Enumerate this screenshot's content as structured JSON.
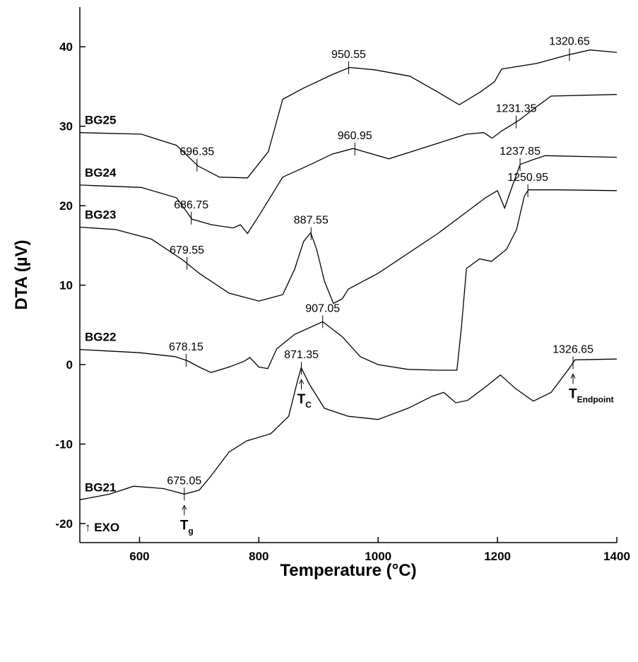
{
  "chart_data": {
    "type": "line",
    "xlabel": "Temperature (°C)",
    "ylabel": "DTA (µV)",
    "xlim": [
      500,
      1400
    ],
    "xticks": [
      600,
      800,
      1000,
      1200,
      1400
    ],
    "ylim": [
      -22.4,
      45
    ],
    "yticks": [
      -20,
      -10,
      0,
      10,
      20,
      30,
      40
    ],
    "annotation": "↑ EXO",
    "series": [
      {
        "name": "BG21",
        "color": "#000000",
        "x": [
          500,
          550,
          590,
          640,
          675,
          700,
          720,
          750,
          780,
          820,
          850,
          865,
          871,
          885,
          910,
          950,
          1000,
          1050,
          1090,
          1110,
          1130,
          1150,
          1180,
          1205,
          1230,
          1260,
          1290,
          1320,
          1330,
          1400
        ],
        "values": [
          -17.0,
          -16.3,
          -15.3,
          -15.6,
          -16.3,
          -15.8,
          -14.0,
          -11.0,
          -9.6,
          -8.7,
          -6.5,
          -2.0,
          -0.4,
          -2.5,
          -5.5,
          -6.5,
          -6.9,
          -5.5,
          -4.0,
          -3.5,
          -4.8,
          -4.5,
          -2.8,
          -1.3,
          -3.0,
          -4.6,
          -3.5,
          -0.5,
          0.6,
          0.7
        ],
        "markers": [
          {
            "value": 675.05,
            "tag": {
              "text": "T",
              "sub": "g"
            }
          },
          {
            "value": 871.35,
            "tag": {
              "text": "T",
              "sub": "C"
            }
          },
          {
            "value": 1326.65,
            "tag": {
              "text": "T",
              "sub": "Endpoint"
            }
          }
        ]
      },
      {
        "name": "BG22",
        "color": "#000000",
        "x": [
          500,
          600,
          660,
          680,
          700,
          720,
          750,
          775,
          785,
          800,
          815,
          830,
          860,
          907,
          940,
          970,
          1000,
          1050,
          1100,
          1132,
          1140,
          1148,
          1170,
          1190,
          1215,
          1232,
          1245,
          1252,
          1300,
          1400
        ],
        "values": [
          1.9,
          1.5,
          1.0,
          0.5,
          -0.3,
          -1.0,
          -0.3,
          0.4,
          0.9,
          -0.3,
          -0.5,
          2.0,
          3.8,
          5.4,
          3.5,
          1.0,
          0.0,
          -0.6,
          -0.7,
          -0.7,
          5.0,
          12.1,
          13.3,
          13.0,
          14.5,
          17.0,
          21.2,
          22.0,
          22.0,
          21.9
        ],
        "markers": [
          {
            "value": 678.15
          },
          {
            "value": 907.05
          },
          {
            "value": 1250.95
          }
        ]
      },
      {
        "name": "BG23",
        "color": "#000000",
        "x": [
          500,
          560,
          620,
          672,
          700,
          750,
          800,
          840,
          860,
          875,
          887,
          897,
          910,
          925,
          940,
          950,
          1000,
          1100,
          1180,
          1200,
          1212,
          1225,
          1238,
          1260,
          1280,
          1400
        ],
        "values": [
          17.3,
          17.0,
          15.8,
          13.2,
          11.5,
          9.0,
          8.0,
          8.8,
          12.0,
          15.5,
          16.6,
          14.5,
          10.5,
          7.7,
          8.3,
          9.5,
          11.5,
          16.5,
          21.0,
          21.9,
          19.7,
          22.5,
          25.2,
          25.8,
          26.3,
          26.1
        ],
        "markers": [
          {
            "value": 679.55
          },
          {
            "value": 887.55
          },
          {
            "value": 1237.85
          }
        ]
      },
      {
        "name": "BG24",
        "color": "#000000",
        "x": [
          500,
          603,
          662,
          688,
          721,
          757,
          769,
          781,
          804,
          840,
          887,
          923,
          958,
          1018,
          1089,
          1148,
          1177,
          1191,
          1207,
          1237,
          1266,
          1290,
          1400
        ],
        "values": [
          22.6,
          22.3,
          21.0,
          18.3,
          17.6,
          17.2,
          17.6,
          16.5,
          19.2,
          23.6,
          25.2,
          26.5,
          27.2,
          25.9,
          27.6,
          29.0,
          29.2,
          28.5,
          29.4,
          30.8,
          32.5,
          33.8,
          34.0
        ],
        "markers": [
          {
            "value": 686.75
          },
          {
            "value": 960.95
          },
          {
            "value": 1231.35
          }
        ]
      },
      {
        "name": "BG25",
        "color": "#000000",
        "x": [
          500,
          603,
          662,
          698,
          734,
          781,
          816,
          840,
          875,
          923,
          952,
          994,
          1053,
          1100,
          1136,
          1171,
          1195,
          1207,
          1266,
          1314,
          1355,
          1400
        ],
        "values": [
          29.2,
          29.0,
          27.6,
          25.0,
          23.6,
          23.5,
          26.8,
          33.4,
          34.8,
          36.5,
          37.4,
          37.1,
          36.3,
          34.3,
          32.7,
          34.3,
          35.6,
          37.2,
          37.9,
          38.9,
          39.6,
          39.3
        ],
        "markers": [
          {
            "value": 696.35
          },
          {
            "value": 950.55
          },
          {
            "value": 1320.65
          }
        ]
      }
    ]
  }
}
